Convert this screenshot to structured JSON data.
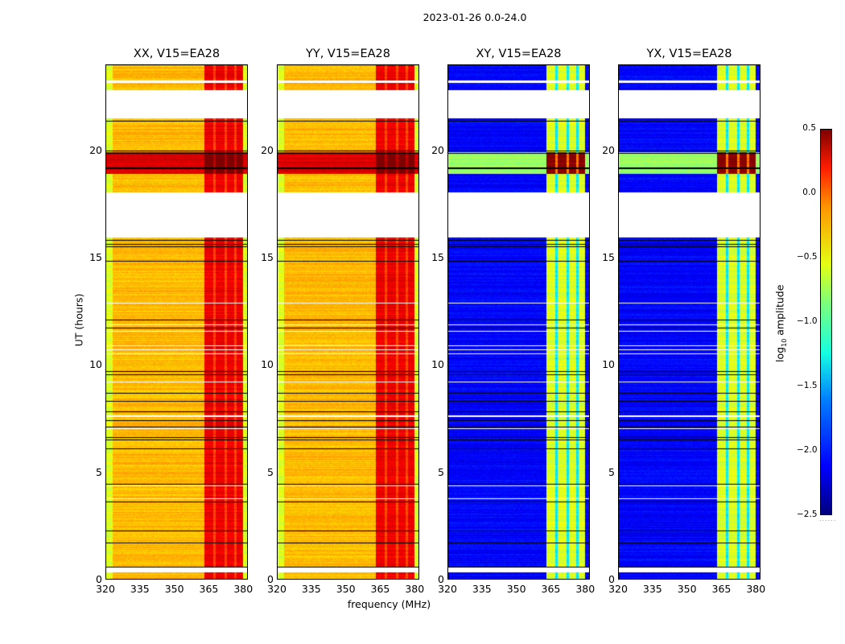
{
  "chart_data": {
    "type": "heatmap",
    "title": "2023-01-26 0.0-24.0",
    "xlabel": "frequency (MHz)",
    "ylabel": "UT (hours)",
    "xlim": [
      320,
      382
    ],
    "ylim": [
      0,
      24
    ],
    "xticks": [
      320,
      335,
      350,
      365,
      380
    ],
    "yticks": [
      0,
      5,
      10,
      15,
      20
    ],
    "panels": [
      {
        "title": "XX, V15=EA28",
        "kind": "parallel"
      },
      {
        "title": "YY, V15=EA28",
        "kind": "parallel"
      },
      {
        "title": "XY, V15=EA28",
        "kind": "cross"
      },
      {
        "title": "YX, V15=EA28",
        "kind": "cross"
      }
    ],
    "colorbar": {
      "label": "log10 amplitude",
      "label_main": "log",
      "label_sub": "10",
      "label_rest": " amplitude",
      "colormap": "jet",
      "range": [
        -2.5,
        0.5
      ],
      "ticks": [
        "0.5",
        "0.0",
        "−0.5",
        "−1.0",
        "−1.5",
        "−2.0",
        "−2.5"
      ]
    },
    "blank_intervals_ut": [
      [
        0.35,
        0.55
      ],
      [
        15.95,
        18.05
      ],
      [
        21.5,
        22.8
      ],
      [
        23.15,
        23.25
      ]
    ],
    "flagged_band_mhz": [
      363,
      380
    ],
    "bright_intervals_ut": [
      [
        18.9,
        19.9
      ],
      [
        21.6,
        22.6
      ]
    ],
    "values_summary": {
      "parallel_baseline_log10": -0.5,
      "parallel_band_log10": 0.1,
      "cross_baseline_log10": -2.2,
      "cross_band_log10": -0.8
    }
  }
}
